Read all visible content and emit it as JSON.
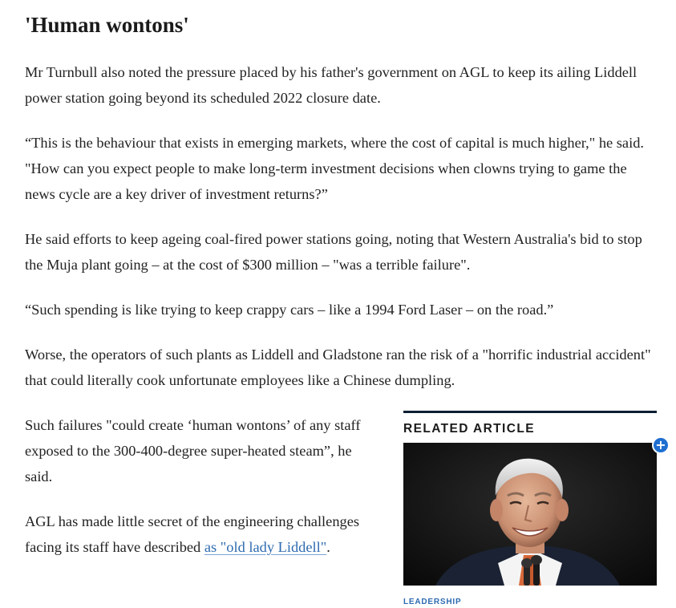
{
  "article": {
    "heading": "'Human wontons'",
    "paragraphs": {
      "p1": "Mr Turnbull also noted the pressure placed by his father's government on AGL to keep its ailing Liddell power station going beyond its scheduled 2022 closure date.",
      "p2": "“This is the behaviour that exists in emerging markets, where the cost of capital is much higher,\" he said. \"How can you expect people to make long-term investment decisions when clowns trying to game the news cycle are a key driver of investment returns?”",
      "p3": "He said efforts to keep ageing coal-fired power stations going, noting that Western Australia's bid to stop the Muja plant going – at the cost of $300 million – \"was a terrible failure\".",
      "p4": "“Such spending is like trying to keep crappy cars – like a 1994 Ford Laser – on the road.”",
      "p5": "Worse, the operators of such plants as Liddell and Gladstone ran the risk of a \"horrific industrial accident\" that could literally cook unfortunate employees like a Chinese dumpling.",
      "p6": "Such failures \"could create ‘human wontons’ of any staff exposed to the 300-400-degree super-heated steam”, he said.",
      "p7_before": "AGL has made little secret of the engineering challenges facing its staff have described ",
      "p7_link": "as \"old lady Liddell\"",
      "p7_after": "."
    }
  },
  "related": {
    "title": "RELATED ARTICLE",
    "plus_icon": "plus-icon",
    "tag": "LEADERSHIP",
    "accent_color": "#1f6fd1"
  }
}
